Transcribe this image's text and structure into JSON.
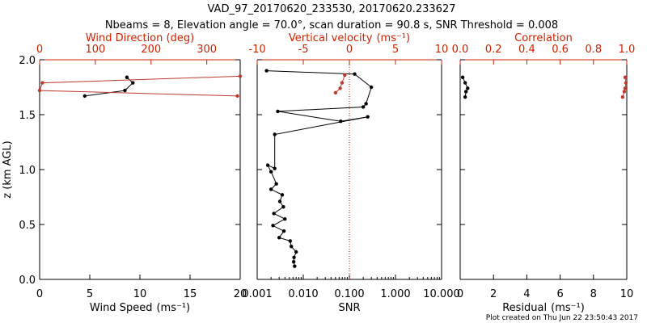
{
  "title_line1": "VAD_97_20170620_233530, 20170620.233627",
  "title_line2": "Nbeams = 8, Elevation angle = 70.0°, scan duration = 90.8 s, SNR Threshold = 0.008",
  "footer": "Plot created on Thu Jun 22 23:50:43 2017",
  "colors": {
    "black": "#000000",
    "red": "#c0392b",
    "red_axis": "#cc2200"
  },
  "chart_data": [
    {
      "type": "line",
      "name": "wind",
      "ylabel": "z (km AGL)",
      "ylim": [
        0,
        2.0
      ],
      "yticks": [
        "0.0",
        "0.5",
        "1.0",
        "1.5",
        "2.0"
      ],
      "ytick_values": [
        0,
        0.5,
        1.0,
        1.5,
        2.0
      ],
      "bottom_axis": {
        "label": "Wind Speed",
        "unit": "(ms⁻¹)",
        "range": [
          0,
          20
        ],
        "ticks": [
          "0",
          "5",
          "10",
          "15",
          "20"
        ],
        "tick_values": [
          0,
          5,
          10,
          15,
          20
        ]
      },
      "top_axis": {
        "label": "Wind Direction (deg)",
        "range": [
          0,
          360
        ],
        "ticks": [
          "0",
          "100",
          "200",
          "300"
        ],
        "tick_values": [
          0,
          100,
          200,
          300
        ]
      },
      "series": [
        {
          "name": "Wind Speed",
          "axis": "bottom",
          "color": "black",
          "x": [
            4.5,
            8.5,
            9.3,
            8.7
          ],
          "y": [
            1.67,
            1.72,
            1.79,
            1.84
          ]
        },
        {
          "name": "Wind Direction",
          "axis": "top",
          "color": "red",
          "x": [
            355,
            0,
            5,
            360
          ],
          "y": [
            1.67,
            1.72,
            1.79,
            1.85
          ]
        }
      ]
    },
    {
      "type": "line",
      "name": "snr",
      "ylim": [
        0,
        2.0
      ],
      "bottom_axis": {
        "label": "SNR",
        "scale": "log",
        "range": [
          0.001,
          10
        ],
        "ticks": [
          "0.001",
          "0.010",
          "0.100",
          "1.000",
          "10.000"
        ],
        "tick_values": [
          0.001,
          0.01,
          0.1,
          1,
          10
        ]
      },
      "top_axis": {
        "label": "Vertical velocity",
        "unit": "(ms⁻¹)",
        "range": [
          -10,
          10
        ],
        "ticks": [
          "-10",
          "-5",
          "0",
          "5",
          "10"
        ],
        "tick_values": [
          -10,
          -5,
          0,
          5,
          10
        ],
        "reference_line": 0
      },
      "series": [
        {
          "name": "SNR",
          "axis": "bottom",
          "color": "black",
          "x": [
            0.0065,
            0.0062,
            0.0063,
            0.007,
            0.0055,
            0.0052,
            0.003,
            0.0038,
            0.0022,
            0.004,
            0.0023,
            0.0037,
            0.0031,
            0.0035,
            0.002,
            0.0026,
            0.002,
            0.0017,
            0.0024,
            0.0024,
            0.25,
            0.065,
            0.0028,
            0.2,
            0.23,
            0.3,
            0.13,
            0.0016
          ],
          "y": [
            0.12,
            0.16,
            0.2,
            0.25,
            0.3,
            0.35,
            0.38,
            0.44,
            0.49,
            0.55,
            0.6,
            0.66,
            0.71,
            0.77,
            0.82,
            0.87,
            0.98,
            1.04,
            1.01,
            1.32,
            1.48,
            1.44,
            1.53,
            1.57,
            1.6,
            1.75,
            1.87,
            1.9
          ]
        },
        {
          "name": "Vertical velocity",
          "axis": "top",
          "color": "red",
          "x": [
            -1.5,
            -1.0,
            -0.8,
            -0.5
          ],
          "y": [
            1.7,
            1.74,
            1.79,
            1.86
          ]
        }
      ]
    },
    {
      "type": "line",
      "name": "residual",
      "ylim": [
        0,
        2.0
      ],
      "bottom_axis": {
        "label": "Residual",
        "unit": "(ms⁻¹)",
        "range": [
          0,
          10
        ],
        "ticks": [
          "0",
          "2",
          "4",
          "6",
          "8",
          "10"
        ],
        "tick_values": [
          0,
          2,
          4,
          6,
          8,
          10
        ]
      },
      "top_axis": {
        "label": "Correlation",
        "range": [
          0,
          1.0
        ],
        "ticks": [
          "0.0",
          "0.2",
          "0.4",
          "0.6",
          "0.8",
          "1.0"
        ],
        "tick_values": [
          0,
          0.2,
          0.4,
          0.6,
          0.8,
          1.0
        ]
      },
      "series": [
        {
          "name": "Residual",
          "axis": "bottom",
          "color": "black",
          "x": [
            0.3,
            0.35,
            0.45,
            0.3,
            0.15
          ],
          "y": [
            1.66,
            1.71,
            1.74,
            1.79,
            1.84
          ]
        },
        {
          "name": "Correlation",
          "axis": "top",
          "color": "red",
          "x": [
            0.975,
            0.985,
            0.99,
            0.995,
            0.99
          ],
          "y": [
            1.66,
            1.71,
            1.74,
            1.79,
            1.84
          ]
        }
      ]
    }
  ]
}
